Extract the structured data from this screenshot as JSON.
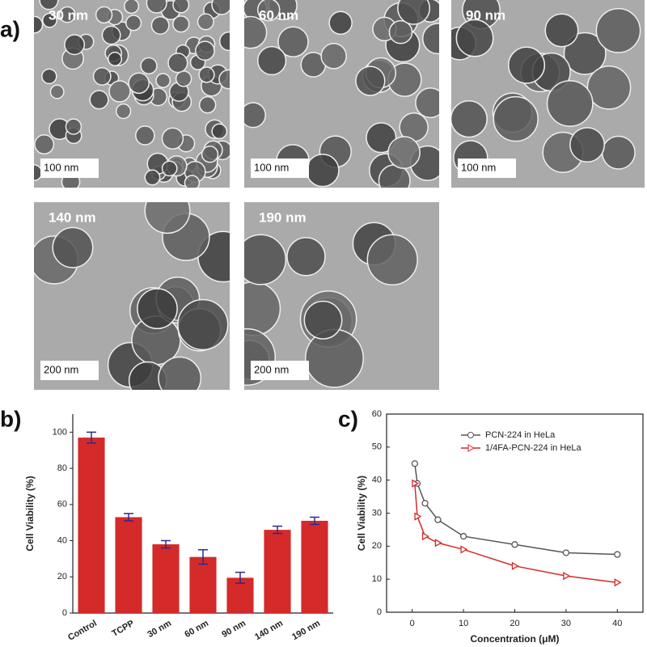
{
  "panel_labels": [
    "a)",
    "b)",
    "c)"
  ],
  "tem_images": [
    {
      "size_label": "30 nm",
      "scale_label": "100 nm"
    },
    {
      "size_label": "60 nm",
      "scale_label": "100 nm"
    },
    {
      "size_label": "90 nm",
      "scale_label": "100 nm"
    },
    {
      "size_label": "140 nm",
      "scale_label": "200 nm"
    },
    {
      "size_label": "190 nm",
      "scale_label": "200 nm"
    }
  ],
  "chart_data": [
    {
      "type": "bar",
      "y_label": "Cell Viability (%)",
      "categories": [
        "Control",
        "TCPP",
        "30 nm",
        "60 nm",
        "90 nm",
        "140 nm",
        "190 nm"
      ],
      "values": [
        97,
        53,
        38,
        31,
        19.5,
        46,
        51
      ],
      "errors": [
        3,
        2,
        2,
        4,
        3,
        2,
        2
      ],
      "color": "#d42a2a",
      "error_color": "#2b2b8c",
      "ylim": [
        0,
        110
      ],
      "yticks": [
        0,
        20,
        40,
        60,
        80,
        100
      ]
    },
    {
      "type": "line",
      "x_label": "Concentration (μM)",
      "y_label": "Cell Viability (%)",
      "x": [
        0.5,
        1,
        2.5,
        5,
        10,
        20,
        30,
        40
      ],
      "series": [
        {
          "name": "PCN-224 in HeLa",
          "color": "#555555",
          "marker": "circle",
          "values": [
            45,
            39,
            33,
            28,
            23,
            20.5,
            18,
            17.5
          ]
        },
        {
          "name": "1/4FA-PCN-224 in HeLa",
          "color": "#d42a2a",
          "marker": "triangle",
          "values": [
            39,
            29,
            23,
            21,
            19,
            14,
            11,
            9
          ]
        }
      ],
      "xlim": [
        -5,
        45
      ],
      "xticks": [
        0,
        10,
        20,
        30,
        40
      ],
      "ylim": [
        0,
        60
      ],
      "yticks": [
        0,
        10,
        20,
        30,
        40,
        50,
        60
      ],
      "legend": "upper-right"
    }
  ]
}
